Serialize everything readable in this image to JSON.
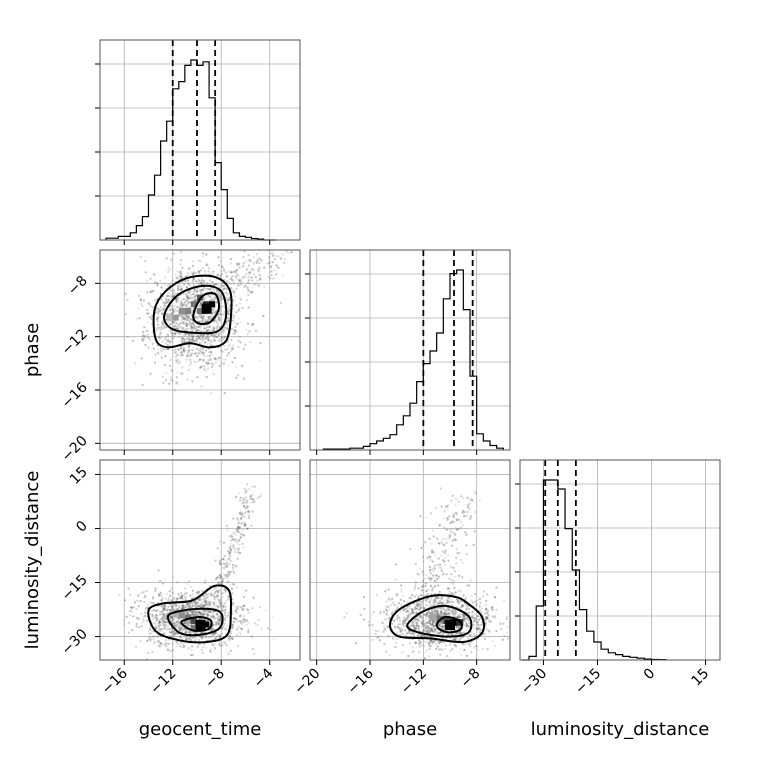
{
  "chart_data": {
    "type": "corner",
    "parameters": [
      "geocent_time",
      "phase",
      "luminosity_distance"
    ],
    "axis_labels": {
      "geocent_time": "geocent_time",
      "phase": "phase",
      "luminosity_distance": "luminosity_distance"
    },
    "ranges": {
      "geocent_time": [
        -18,
        -1.5
      ],
      "phase": [
        -20.5,
        -5.5
      ],
      "luminosity_distance": [
        -36.5,
        19
      ]
    },
    "ticks": {
      "geocent_time": [
        -16,
        -12,
        -8,
        -4
      ],
      "phase": [
        -20,
        -16,
        -12,
        -8
      ],
      "luminosity_distance": [
        -30,
        -15,
        0,
        15
      ]
    },
    "tick_labels": {
      "geocent_time": [
        "−16",
        "−12",
        "−8",
        "−4"
      ],
      "phase": [
        "−20",
        "−16",
        "−12",
        "−8"
      ],
      "luminosity_distance": [
        "−30",
        "−15",
        "0",
        "15"
      ]
    },
    "grid": true,
    "quantiles": {
      "geocent_time": [
        -12.0,
        -10.0,
        -8.5
      ],
      "phase": [
        -12.0,
        -9.7,
        -8.3
      ],
      "luminosity_distance": [
        -29.5,
        -26.0,
        -21.0
      ]
    },
    "histograms": {
      "geocent_time": {
        "bin_edges": [
          -17.5,
          -16.5,
          -15.5,
          -15.0,
          -14.5,
          -14.0,
          -13.5,
          -13.0,
          -12.5,
          -12.0,
          -11.5,
          -11.0,
          -10.5,
          -10.0,
          -9.5,
          -9.0,
          -8.5,
          -8.0,
          -7.5,
          -7.0,
          -6.5,
          -6.0,
          -5.5,
          -5.0,
          -4.5,
          -3.5
        ],
        "counts": [
          1,
          2,
          4,
          8,
          13,
          25,
          36,
          55,
          66,
          84,
          88,
          97,
          100,
          97,
          99,
          79,
          43,
          28,
          12,
          4,
          2,
          1.5,
          0.8,
          0.5,
          0
        ]
      },
      "phase": {
        "bin_edges": [
          -19.5,
          -17.5,
          -16.5,
          -16.0,
          -15.5,
          -15.0,
          -14.5,
          -14.0,
          -13.5,
          -13.0,
          -12.5,
          -12.0,
          -11.5,
          -11.0,
          -10.5,
          -10.0,
          -9.5,
          -9.0,
          -8.5,
          -8.0,
          -7.5,
          -7.0,
          -6.5,
          -6.0
        ],
        "counts": [
          0.5,
          1,
          2,
          3.5,
          5,
          6.5,
          8.5,
          14,
          19,
          26,
          38,
          48,
          55,
          65,
          84,
          98,
          100,
          78,
          41,
          9,
          5,
          2.5,
          1
        ]
      },
      "luminosity_distance": {
        "bin_edges": [
          -36,
          -34,
          -32,
          -30,
          -28,
          -26,
          -24,
          -22,
          -20,
          -18,
          -16,
          -14,
          -12,
          -10,
          -8,
          -6,
          -4,
          -2,
          0,
          2,
          4
        ],
        "counts": [
          0,
          2,
          30,
          100,
          100,
          95,
          73,
          50,
          28,
          16,
          10,
          6,
          4,
          3,
          2,
          1.5,
          1,
          0.5,
          0.3,
          0.2
        ]
      }
    },
    "pairs": [
      {
        "x": "geocent_time",
        "y": "phase",
        "peak": [
          -9.2,
          -9.9
        ],
        "contour_levels": [
          [
            [
              -13.5,
              -10.0
            ],
            [
              -12.6,
              -8.6
            ],
            [
              -10.8,
              -7.6
            ],
            [
              -8.6,
              -7.5
            ],
            [
              -7.3,
              -8.5
            ],
            [
              -7.2,
              -10.5
            ],
            [
              -7.6,
              -12.3
            ],
            [
              -8.9,
              -12.8
            ],
            [
              -10.6,
              -12.5
            ],
            [
              -12.4,
              -12.8
            ],
            [
              -13.4,
              -12.2
            ]
          ],
          [
            [
              -12.7,
              -10.4
            ],
            [
              -11.6,
              -8.9
            ],
            [
              -9.6,
              -8.2
            ],
            [
              -8.0,
              -8.6
            ],
            [
              -7.6,
              -10.4
            ],
            [
              -8.3,
              -11.6
            ],
            [
              -10.3,
              -11.7
            ],
            [
              -12.1,
              -11.4
            ]
          ],
          [
            [
              -10.3,
              -10.4
            ],
            [
              -9.6,
              -9.0
            ],
            [
              -8.5,
              -8.8
            ],
            [
              -8.2,
              -9.9
            ],
            [
              -8.9,
              -10.9
            ],
            [
              -9.9,
              -11.0
            ]
          ]
        ],
        "density_blocks": [
          [
            -12.5,
            -10.8,
            0.2
          ],
          [
            -12.0,
            -10.8,
            0.35
          ],
          [
            -11.5,
            -10.3,
            0.4
          ],
          [
            -11.0,
            -10.3,
            0.45
          ],
          [
            -10.5,
            -9.8,
            0.5
          ],
          [
            -10.0,
            -9.3,
            0.6
          ],
          [
            -9.5,
            -9.8,
            0.8
          ],
          [
            -9.0,
            -9.8,
            1.0
          ],
          [
            -9.5,
            -10.3,
            0.6
          ],
          [
            -10.0,
            -10.3,
            0.5
          ]
        ],
        "scatter": {
          "n": 1600,
          "center": [
            -10.2,
            -10.6
          ],
          "sd": [
            1.9,
            2.0
          ],
          "tail": "upper-right",
          "seed": 11
        }
      },
      {
        "x": "geocent_time",
        "y": "luminosity_distance",
        "peak": [
          -9.7,
          -26.8
        ],
        "contour_levels": [
          [
            [
              -14.0,
              -22.8
            ],
            [
              -12.8,
              -20.8
            ],
            [
              -10.4,
              -20.0
            ],
            [
              -8.6,
              -16.0
            ],
            [
              -7.4,
              -17.0
            ],
            [
              -7.2,
              -22.5
            ],
            [
              -7.5,
              -29.5
            ],
            [
              -9.2,
              -31.5
            ],
            [
              -11.5,
              -31.0
            ],
            [
              -13.4,
              -28.5
            ]
          ],
          [
            [
              -12.4,
              -24.5
            ],
            [
              -11.2,
              -22.8
            ],
            [
              -9.2,
              -22.3
            ],
            [
              -8.0,
              -23.5
            ],
            [
              -8.1,
              -27.5
            ],
            [
              -9.5,
              -29.4
            ],
            [
              -11.4,
              -29.0
            ]
          ],
          [
            [
              -11.3,
              -26.0
            ],
            [
              -10.0,
              -24.6
            ],
            [
              -8.9,
              -25.4
            ],
            [
              -9.0,
              -27.8
            ],
            [
              -10.3,
              -28.3
            ]
          ]
        ],
        "density_blocks": [
          [
            -12.0,
            -24.5,
            0.25
          ],
          [
            -11.5,
            -25.0,
            0.4
          ],
          [
            -11.0,
            -25.5,
            0.5
          ],
          [
            -10.5,
            -26.5,
            0.7
          ],
          [
            -10.0,
            -27.0,
            0.9
          ],
          [
            -9.5,
            -27.5,
            1.0
          ],
          [
            -10.5,
            -28.5,
            0.5
          ]
        ],
        "scatter": {
          "n": 1600,
          "center": [
            -10.5,
            -25.0
          ],
          "sd": [
            2.0,
            4.0
          ],
          "tail": "geocent-up",
          "seed": 23
        }
      },
      {
        "x": "phase",
        "y": "luminosity_distance",
        "peak": [
          -10.0,
          -26.8
        ],
        "contour_levels": [
          [
            [
              -14.5,
              -26.8
            ],
            [
              -13.8,
              -22.5
            ],
            [
              -11.5,
              -18.8
            ],
            [
              -9.6,
              -19.0
            ],
            [
              -8.6,
              -21.0
            ],
            [
              -7.6,
              -24.5
            ],
            [
              -7.6,
              -29.0
            ],
            [
              -9.0,
              -31.5
            ],
            [
              -11.5,
              -30.5
            ],
            [
              -13.8,
              -30.0
            ]
          ],
          [
            [
              -13.2,
              -26.8
            ],
            [
              -12.0,
              -23.0
            ],
            [
              -10.3,
              -21.5
            ],
            [
              -8.6,
              -24.4
            ],
            [
              -8.6,
              -28.8
            ],
            [
              -10.2,
              -30.0
            ],
            [
              -12.4,
              -28.8
            ]
          ],
          [
            [
              -11.0,
              -27.0
            ],
            [
              -10.4,
              -24.6
            ],
            [
              -9.3,
              -25.6
            ],
            [
              -9.2,
              -28.0
            ],
            [
              -10.2,
              -28.8
            ]
          ]
        ],
        "density_blocks": [
          [
            -11.5,
            -25.5,
            0.3
          ],
          [
            -11.0,
            -26.0,
            0.5
          ],
          [
            -10.5,
            -26.5,
            0.7
          ],
          [
            -10.0,
            -27.0,
            1.0
          ],
          [
            -9.5,
            -27.0,
            0.8
          ]
        ],
        "scatter": {
          "n": 1500,
          "center": [
            -10.8,
            -25.5
          ],
          "sd": [
            2.0,
            4.0
          ],
          "tail": "phase-up",
          "seed": 37
        }
      }
    ]
  }
}
